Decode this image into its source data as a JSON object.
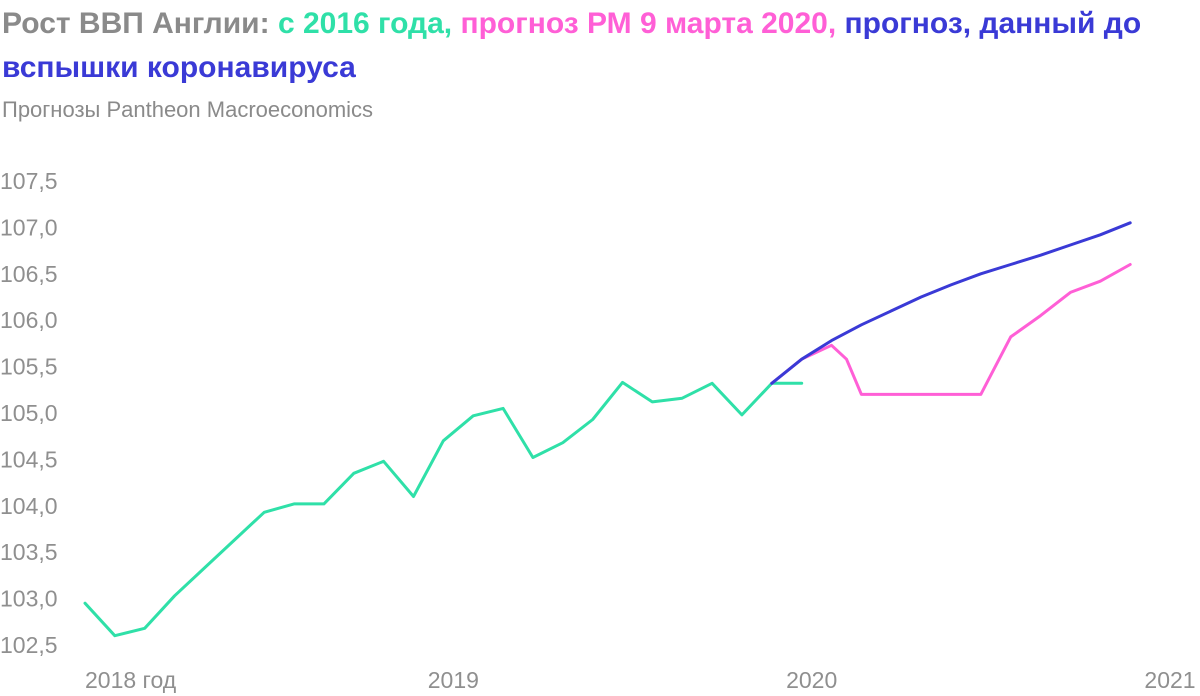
{
  "title": {
    "part1": "Рост ВВП Англии: ",
    "part2": "с 2016 года, ",
    "part3": "прогноз РМ 9 марта 2020, ",
    "part4": "прогноз, данный до вспышки коронавируса"
  },
  "subtitle": "Прогнозы Pantheon Macroeconomics",
  "colors": {
    "title": "#8a8a8a",
    "actual": "#2fe0a8",
    "pm_forecast": "#ff5fd6",
    "pre_covid_forecast": "#3a3ad6"
  },
  "chart_data": {
    "type": "line",
    "ylim": [
      102.5,
      107.5
    ],
    "xlim": [
      2018,
      2021
    ],
    "y_ticks": [
      "107,5",
      "107,0",
      "106,5",
      "106,0",
      "105,5",
      "105,0",
      "104,5",
      "104,0",
      "103,5",
      "103,0",
      "102,5"
    ],
    "y_tick_values": [
      107.5,
      107.0,
      106.5,
      106.0,
      105.5,
      105.0,
      104.5,
      104.0,
      103.5,
      103.0,
      102.5
    ],
    "x_ticks": [
      "2018 год",
      "2019",
      "2020",
      "2021"
    ],
    "x_tick_values": [
      2018,
      2019,
      2020,
      2021
    ],
    "series": [
      {
        "key": "actual",
        "x": [
          2018.0,
          2018.0833,
          2018.1667,
          2018.25,
          2018.3333,
          2018.4167,
          2018.5,
          2018.5833,
          2018.6667,
          2018.75,
          2018.8333,
          2018.9167,
          2019.0,
          2019.0833,
          2019.1667,
          2019.25,
          2019.3333,
          2019.4167,
          2019.5,
          2019.5833,
          2019.6667,
          2019.75,
          2019.8333,
          2019.9167,
          2020.0
        ],
        "y": [
          102.95,
          102.6,
          102.68,
          103.03,
          103.33,
          103.63,
          103.93,
          104.02,
          104.02,
          104.35,
          104.48,
          104.1,
          104.7,
          104.97,
          105.05,
          104.52,
          104.68,
          104.93,
          105.33,
          105.12,
          105.16,
          105.32,
          104.98,
          105.32,
          105.32
        ]
      },
      {
        "key": "pm_forecast",
        "x": [
          2019.9167,
          2020.0,
          2020.0833,
          2020.125,
          2020.1667,
          2020.25,
          2020.3333,
          2020.4167,
          2020.5,
          2020.5833,
          2020.6667,
          2020.75,
          2020.8333,
          2020.9167
        ],
        "y": [
          105.32,
          105.58,
          105.73,
          105.58,
          105.2,
          105.2,
          105.2,
          105.2,
          105.2,
          105.82,
          106.05,
          106.3,
          106.42,
          106.6
        ]
      },
      {
        "key": "pre_covid_forecast",
        "x": [
          2019.9167,
          2020.0,
          2020.0833,
          2020.1667,
          2020.25,
          2020.3333,
          2020.4167,
          2020.5,
          2020.5833,
          2020.6667,
          2020.75,
          2020.8333,
          2020.9167
        ],
        "y": [
          105.32,
          105.58,
          105.78,
          105.95,
          106.1,
          106.25,
          106.38,
          106.5,
          106.6,
          106.7,
          106.81,
          106.92,
          107.05
        ]
      }
    ]
  }
}
